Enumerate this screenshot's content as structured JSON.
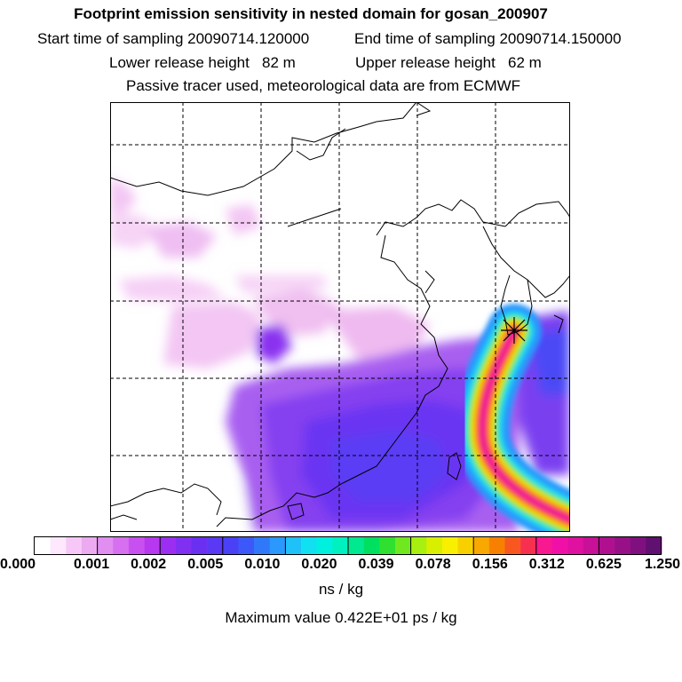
{
  "header": {
    "title": "Footprint emission sensitivity in nested domain for gosan_200907",
    "start_label": "Start time of sampling 20090714.120000",
    "end_label": "End time of sampling 20090714.150000",
    "lower_label": "Lower release height   82 m",
    "upper_label": "Upper release height   62 m",
    "tracer_label": "Passive tracer used, meteorological data are from ECMWF"
  },
  "colorbar": {
    "ticks": [
      "0.000",
      "0.001",
      "0.002",
      "0.005",
      "0.010",
      "0.020",
      "0.039",
      "0.078",
      "0.156",
      "0.312",
      "0.625",
      "1.250"
    ],
    "colors": [
      "#ffffff",
      "#fde8fd",
      "#f7c8f7",
      "#ecaaf0",
      "#e08ef0",
      "#d670f0",
      "#c950f0",
      "#b838f0",
      "#9b2ef0",
      "#8030f0",
      "#6a30f2",
      "#5a38f4",
      "#4a40f6",
      "#3c58f8",
      "#2f78fa",
      "#2a98fc",
      "#20c0f8",
      "#10e0f0",
      "#00f0e0",
      "#00f0c0",
      "#00e890",
      "#00e060",
      "#30e030",
      "#70e820",
      "#a8f010",
      "#d8f000",
      "#f8f000",
      "#f8d000",
      "#f8a800",
      "#f88000",
      "#f85820",
      "#f83050",
      "#f81890",
      "#f010a8",
      "#e010a0",
      "#c81098",
      "#b01090",
      "#981088",
      "#801080",
      "#601070"
    ],
    "unit": "ns / kg"
  },
  "max_value_label": "Maximum value  0.422E+01 ps / kg",
  "map": {
    "release_marker": "star-icon"
  }
}
